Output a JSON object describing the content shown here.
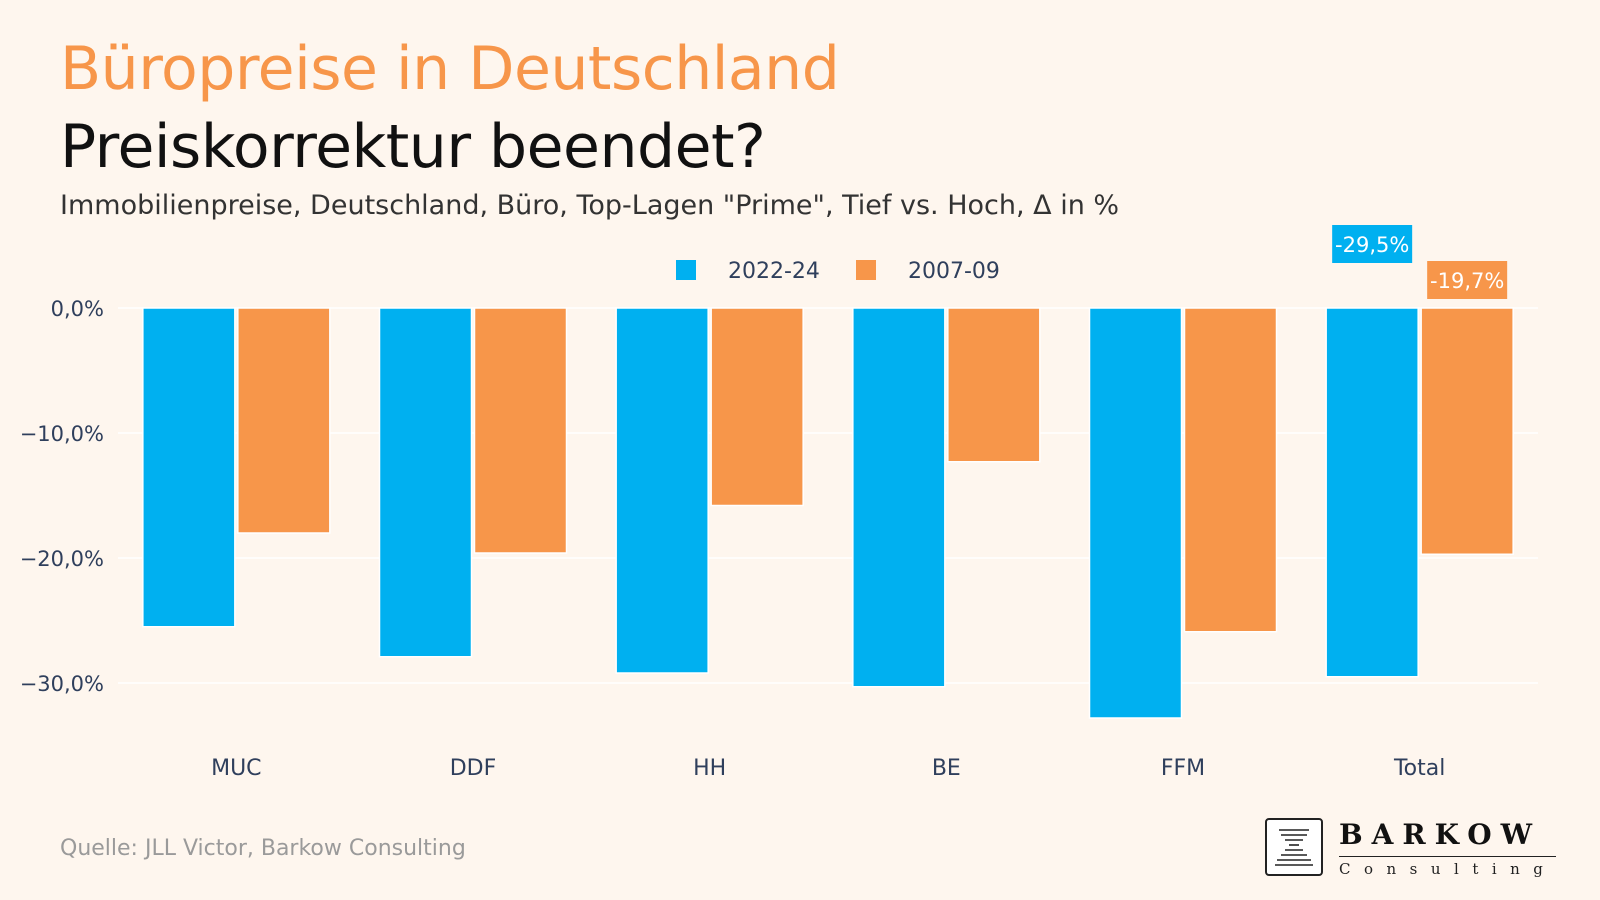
{
  "header": {
    "title": "Büropreise in Deutschland",
    "subtitle": "Preiskorrektur beendet?",
    "caption": "Immobilienpreise, Deutschland, Büro, Top-Lagen \"Prime\", Tief vs. Hoch, Δ in %"
  },
  "footer": {
    "source": "Quelle: JLL Victor, Barkow Consulting"
  },
  "logo": {
    "name": "BARKOW",
    "sub": "Consulting"
  },
  "colors": {
    "series_2022": "#00b0f0",
    "series_2007": "#f7964a",
    "grid": "#ffffff",
    "axis_text": "#2f3f5c"
  },
  "chart_data": {
    "type": "bar",
    "categories": [
      "MUC",
      "DDF",
      "HH",
      "BE",
      "FFM",
      "Total"
    ],
    "series": [
      {
        "name": "2022-24",
        "values": [
          -25.5,
          -27.9,
          -29.2,
          -30.3,
          -32.8,
          -29.5
        ]
      },
      {
        "name": "2007-09",
        "values": [
          -18.0,
          -19.6,
          -15.8,
          -12.3,
          -25.9,
          -19.7
        ]
      }
    ],
    "y_ticks": [
      "0,0%",
      "−10,0%",
      "−20,0%",
      "−30,0%"
    ],
    "y_tick_values": [
      0,
      -10,
      -20,
      -30
    ],
    "ylim": [
      -35,
      0
    ],
    "data_labels": [
      {
        "series": 0,
        "category": "Total",
        "text": "-29,5%"
      },
      {
        "series": 1,
        "category": "Total",
        "text": "-19,7%"
      }
    ],
    "legend_position": "top-center",
    "grid": true
  }
}
